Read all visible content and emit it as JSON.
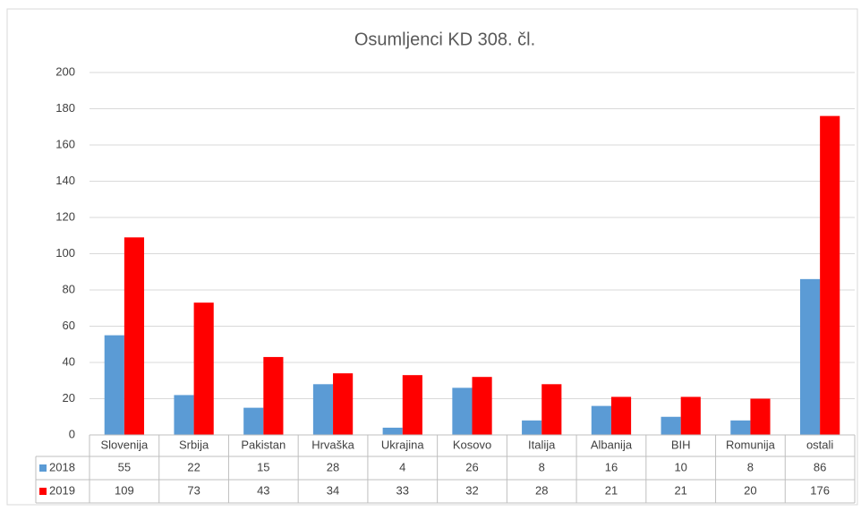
{
  "chart_data": {
    "type": "bar",
    "title": "Osumljenci KD 308. čl.",
    "categories": [
      "Slovenija",
      "Srbija",
      "Pakistan",
      "Hrvaška",
      "Ukrajina",
      "Kosovo",
      "Italija",
      "Albanija",
      "BIH",
      "Romunija",
      "ostali"
    ],
    "series": [
      {
        "name": "2018",
        "color": "#5b9bd5",
        "values": [
          55,
          22,
          15,
          28,
          4,
          26,
          8,
          16,
          10,
          8,
          86
        ]
      },
      {
        "name": "2019",
        "color": "#ff0000",
        "values": [
          109,
          73,
          43,
          34,
          33,
          32,
          28,
          21,
          21,
          20,
          176
        ]
      }
    ],
    "ylim": [
      0,
      200
    ],
    "yticks": [
      0,
      20,
      40,
      60,
      80,
      100,
      120,
      140,
      160,
      180,
      200
    ],
    "grid": true,
    "data_table": true
  }
}
